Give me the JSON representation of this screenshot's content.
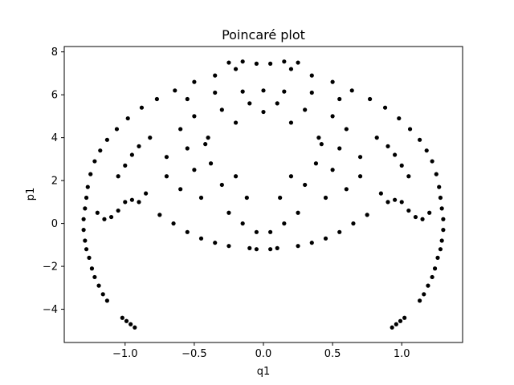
{
  "chart_data": {
    "type": "scatter",
    "title": "Poincaré plot",
    "xlabel": "q1",
    "ylabel": "p1",
    "xlim": [
      -1.44,
      1.44
    ],
    "ylim": [
      -5.55,
      8.25
    ],
    "xticks": [
      -1.0,
      -0.5,
      0.0,
      0.5,
      1.0
    ],
    "xtick_labels": [
      "−1.0",
      "−0.5",
      "0.0",
      "0.5",
      "1.0"
    ],
    "yticks": [
      -4,
      -2,
      0,
      2,
      4,
      6,
      8
    ],
    "ytick_labels": [
      "−4",
      "−2",
      "0",
      "2",
      "4",
      "6",
      "8"
    ],
    "grid": false,
    "marker_color": "#000000",
    "series": [
      {
        "points": [
          [
            -0.93,
            -4.85
          ],
          [
            -0.96,
            -4.7
          ],
          [
            -0.99,
            -4.55
          ],
          [
            -1.02,
            -4.4
          ],
          [
            0.93,
            -4.85
          ],
          [
            0.96,
            -4.7
          ],
          [
            0.99,
            -4.55
          ],
          [
            1.02,
            -4.4
          ],
          [
            -1.13,
            -3.6
          ],
          [
            -1.16,
            -3.3
          ],
          [
            -1.19,
            -2.9
          ],
          [
            -1.22,
            -2.5
          ],
          [
            -1.24,
            -2.1
          ],
          [
            -1.26,
            -1.6
          ],
          [
            -1.28,
            -1.2
          ],
          [
            1.13,
            -3.6
          ],
          [
            1.16,
            -3.3
          ],
          [
            1.19,
            -2.9
          ],
          [
            1.22,
            -2.5
          ],
          [
            1.24,
            -2.1
          ],
          [
            1.26,
            -1.6
          ],
          [
            1.28,
            -1.2
          ],
          [
            -1.29,
            -0.8
          ],
          [
            -1.3,
            -0.3
          ],
          [
            -1.3,
            0.2
          ],
          [
            -1.29,
            0.7
          ],
          [
            -1.28,
            1.2
          ],
          [
            -1.27,
            1.7
          ],
          [
            -1.25,
            2.3
          ],
          [
            -1.22,
            2.9
          ],
          [
            -1.18,
            3.4
          ],
          [
            -1.13,
            3.9
          ],
          [
            1.29,
            -0.8
          ],
          [
            1.3,
            -0.3
          ],
          [
            1.3,
            0.2
          ],
          [
            1.29,
            0.7
          ],
          [
            1.28,
            1.2
          ],
          [
            1.27,
            1.7
          ],
          [
            1.25,
            2.3
          ],
          [
            1.22,
            2.9
          ],
          [
            1.18,
            3.4
          ],
          [
            1.13,
            3.9
          ],
          [
            -1.06,
            4.4
          ],
          [
            -0.98,
            4.9
          ],
          [
            -0.88,
            5.4
          ],
          [
            -0.77,
            5.8
          ],
          [
            -0.64,
            6.2
          ],
          [
            -0.5,
            6.6
          ],
          [
            -0.35,
            6.9
          ],
          [
            -0.2,
            7.2
          ],
          [
            -0.05,
            7.45
          ],
          [
            1.06,
            4.4
          ],
          [
            0.98,
            4.9
          ],
          [
            0.88,
            5.4
          ],
          [
            0.77,
            5.8
          ],
          [
            0.64,
            6.2
          ],
          [
            0.5,
            6.6
          ],
          [
            0.35,
            6.9
          ],
          [
            0.2,
            7.2
          ],
          [
            0.05,
            7.45
          ],
          [
            -0.25,
            7.5
          ],
          [
            -0.15,
            7.55
          ],
          [
            0.15,
            7.55
          ],
          [
            0.25,
            7.5
          ],
          [
            -1.2,
            0.5
          ],
          [
            -1.15,
            0.2
          ],
          [
            -1.1,
            0.3
          ],
          [
            -1.05,
            0.6
          ],
          [
            -1.0,
            1.0
          ],
          [
            -0.95,
            1.1
          ],
          [
            -0.9,
            1.0
          ],
          [
            -0.85,
            1.4
          ],
          [
            1.2,
            0.5
          ],
          [
            1.15,
            0.2
          ],
          [
            1.1,
            0.3
          ],
          [
            1.05,
            0.6
          ],
          [
            1.0,
            1.0
          ],
          [
            0.95,
            1.1
          ],
          [
            0.9,
            1.0
          ],
          [
            0.85,
            1.4
          ],
          [
            -0.75,
            0.4
          ],
          [
            -0.65,
            0.0
          ],
          [
            -0.55,
            -0.4
          ],
          [
            -0.45,
            -0.7
          ],
          [
            -0.35,
            -0.9
          ],
          [
            -0.25,
            -1.05
          ],
          [
            -0.1,
            -1.15
          ],
          [
            0.75,
            0.4
          ],
          [
            0.65,
            0.0
          ],
          [
            0.55,
            -0.4
          ],
          [
            0.45,
            -0.7
          ],
          [
            0.35,
            -0.9
          ],
          [
            0.25,
            -1.05
          ],
          [
            0.1,
            -1.15
          ],
          [
            -0.05,
            -1.2
          ],
          [
            0.05,
            -1.2
          ],
          [
            -1.05,
            2.2
          ],
          [
            -1.0,
            2.7
          ],
          [
            -0.95,
            3.2
          ],
          [
            -0.9,
            3.6
          ],
          [
            -0.82,
            4.0
          ],
          [
            1.05,
            2.2
          ],
          [
            1.0,
            2.7
          ],
          [
            0.95,
            3.2
          ],
          [
            0.9,
            3.6
          ],
          [
            0.82,
            4.0
          ],
          [
            -0.7,
            2.2
          ],
          [
            -0.6,
            1.6
          ],
          [
            -0.5,
            2.5
          ],
          [
            -0.45,
            1.2
          ],
          [
            -0.38,
            2.8
          ],
          [
            -0.3,
            1.8
          ],
          [
            -0.25,
            0.5
          ],
          [
            -0.2,
            2.2
          ],
          [
            0.7,
            2.2
          ],
          [
            0.6,
            1.6
          ],
          [
            0.5,
            2.5
          ],
          [
            0.45,
            1.2
          ],
          [
            0.38,
            2.8
          ],
          [
            0.3,
            1.8
          ],
          [
            0.25,
            0.5
          ],
          [
            0.2,
            2.2
          ],
          [
            -0.6,
            4.4
          ],
          [
            -0.5,
            5.0
          ],
          [
            -0.4,
            4.0
          ],
          [
            -0.3,
            5.3
          ],
          [
            -0.2,
            4.7
          ],
          [
            -0.1,
            5.6
          ],
          [
            0.0,
            5.2
          ],
          [
            0.6,
            4.4
          ],
          [
            0.5,
            5.0
          ],
          [
            0.4,
            4.0
          ],
          [
            0.3,
            5.3
          ],
          [
            0.2,
            4.7
          ],
          [
            0.1,
            5.6
          ],
          [
            -0.55,
            5.8
          ],
          [
            -0.35,
            6.1
          ],
          [
            -0.15,
            6.15
          ],
          [
            0.0,
            6.2
          ],
          [
            0.15,
            6.15
          ],
          [
            0.35,
            6.1
          ],
          [
            0.55,
            5.8
          ],
          [
            -0.7,
            3.1
          ],
          [
            -0.55,
            3.5
          ],
          [
            -0.42,
            3.7
          ],
          [
            0.42,
            3.7
          ],
          [
            0.55,
            3.5
          ],
          [
            0.7,
            3.1
          ],
          [
            -0.15,
            0.0
          ],
          [
            -0.05,
            -0.4
          ],
          [
            0.05,
            -0.4
          ],
          [
            0.15,
            0.0
          ],
          [
            -0.12,
            1.2
          ],
          [
            0.12,
            1.2
          ]
        ]
      }
    ]
  }
}
